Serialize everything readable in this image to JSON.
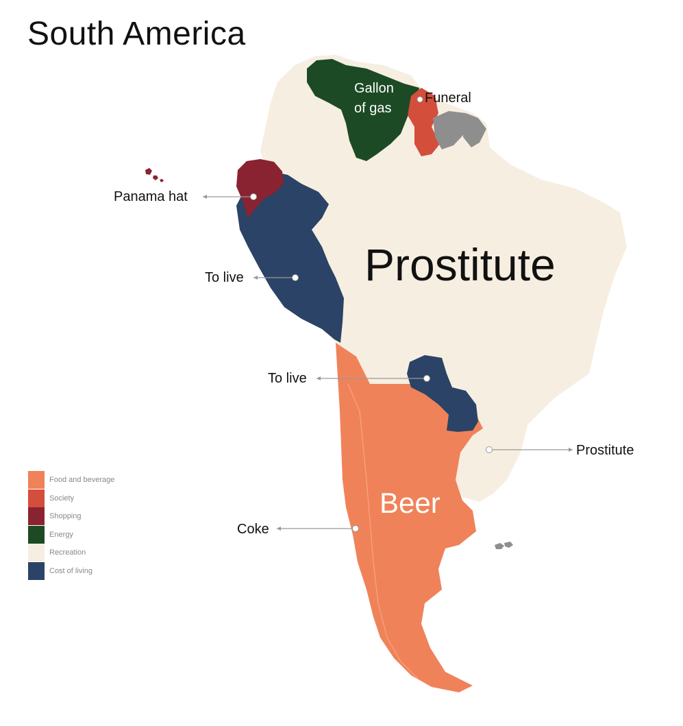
{
  "title": "South America",
  "colors": {
    "food_and_beverage": "#F08259",
    "society": "#D44E3C",
    "shopping": "#8A2331",
    "energy": "#1C4A24",
    "recreation": "#F6EEE0",
    "cost_of_living": "#2B4366",
    "no_data": "#8E8E8E",
    "label_text": "#111111",
    "inner_label_text": "#ffffff",
    "leader_line": "#999999"
  },
  "legend": {
    "items": [
      {
        "label": "Food and beverage",
        "color": "#F08259"
      },
      {
        "label": "Society",
        "color": "#D44E3C"
      },
      {
        "label": "Shopping",
        "color": "#8A2331"
      },
      {
        "label": "Energy",
        "color": "#1C4A24"
      },
      {
        "label": "Recreation",
        "color": "#F6EEE0"
      },
      {
        "label": "Cost of living",
        "color": "#2B4366"
      }
    ]
  },
  "labels": {
    "brazil": "Prostitute",
    "argentina": "Beer",
    "venezuela_line1": "Gallon",
    "venezuela_line2": "of gas",
    "guyana": "Funeral",
    "ecuador": "Panama hat",
    "peru": "To live",
    "paraguay": "To live",
    "uruguay": "Prostitute",
    "chile": "Coke"
  }
}
